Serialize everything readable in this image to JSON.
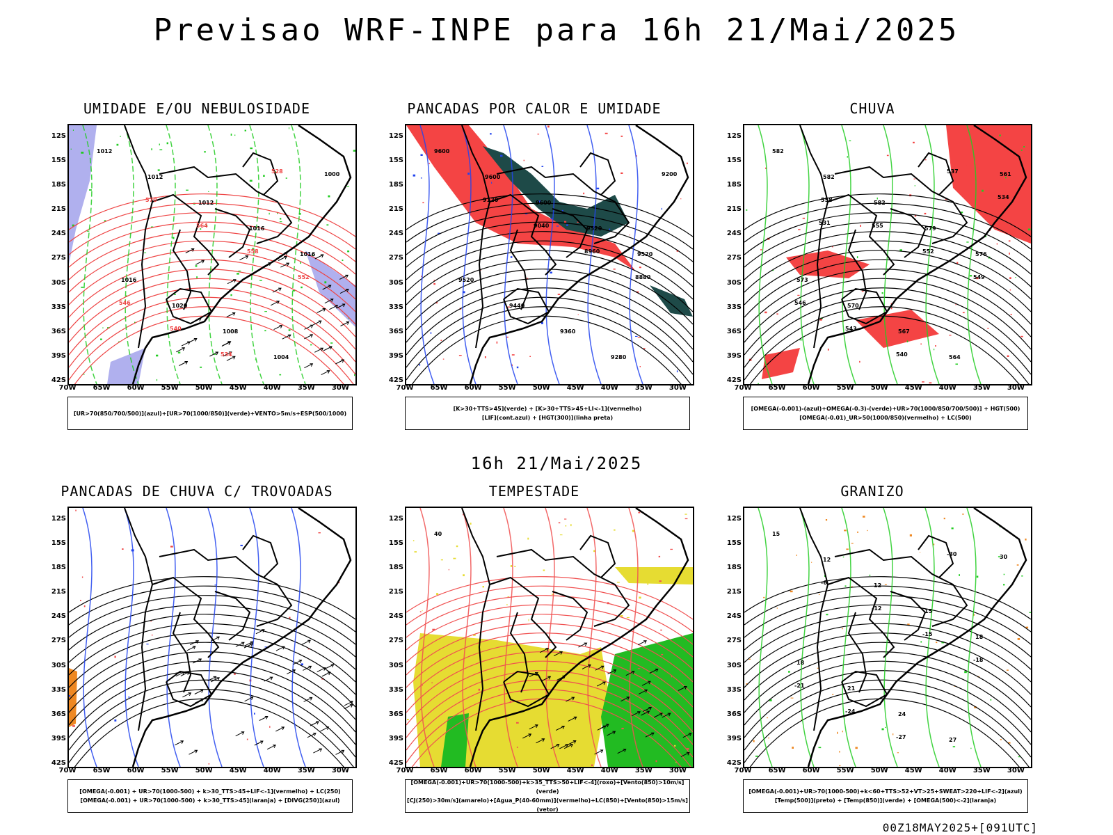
{
  "main_title": "Previsao WRF-INPE  para 16h 21/Mai/2025",
  "mid_title": "16h 21/Mai/2025",
  "footer": "00Z18MAY2025+[091UTC]",
  "lat_ticks": [
    "12S",
    "15S",
    "18S",
    "21S",
    "24S",
    "27S",
    "30S",
    "33S",
    "36S",
    "39S",
    "42S"
  ],
  "lon_ticks": [
    "70W",
    "65W",
    "60W",
    "55W",
    "50W",
    "45W",
    "40W",
    "35W",
    "30W"
  ],
  "panels": [
    {
      "id": "umidade",
      "title": "UMIDADE E/OU NEBULOSIDADE",
      "legend": [
        "[UR>70(850/700/500)](azul)+[UR>70(1000/850)](verde)+VENTO>5m/s+ESP(500/1000)"
      ],
      "labels": [
        "1012",
        "1012",
        "1012",
        "1016",
        "1016",
        "1016",
        "1020",
        "1008",
        "1004",
        "1000",
        "570",
        "564",
        "558",
        "552",
        "546",
        "540",
        "534",
        "528"
      ],
      "colors": {
        "fill_a": "#b0b0ee",
        "fill_b": "#ffffff",
        "lines_a": "#22cc22",
        "lines_b": "#ee4444"
      }
    },
    {
      "id": "pancadas-calor",
      "title": "PANCADAS POR CALOR E UMIDADE",
      "legend": [
        "[K>30+TTS>45](verde) + [K>30+TTS>45+LI<-1](vermelho)",
        "[LIF](cont.azul) + [HGT(300)](linha preta)"
      ],
      "labels": [
        "9600",
        "9600",
        "9600",
        "9520",
        "9520",
        "9520",
        "9440",
        "9360",
        "9280",
        "9200",
        "9120",
        "9040",
        "8960",
        "8880"
      ],
      "colors": {
        "fill_a": "#f44444",
        "fill_b": "#1e4a48",
        "lines_a": "#2244ee",
        "lines_b": "#000000"
      }
    },
    {
      "id": "chuva",
      "title": "CHUVA",
      "legend": [
        "[OMEGA(-0.001)-(azul)+OMEGA(-0.3)-(verde)+UR>70(1000/850/700/500)] + HGT(500)",
        "[OMEGA(-0.01)_UR>50(1000/850)(vermelho) + LC(500)"
      ],
      "labels": [
        "582",
        "582",
        "582",
        "579",
        "576",
        "573",
        "570",
        "567",
        "564",
        "561",
        "558",
        "555",
        "552",
        "549",
        "546",
        "543",
        "540",
        "537",
        "534",
        "531"
      ],
      "colors": {
        "fill_a": "#f44444",
        "fill_b": "#2244ee",
        "lines_a": "#22cc22",
        "lines_b": "#000000"
      }
    },
    {
      "id": "pancadas-trovoadas",
      "title": "PANCADAS DE CHUVA C/ TROVOADAS",
      "legend": [
        "[OMEGA(-0.001) + UR>70(1000-500) + k>30_TTS>45+LIF<-1](vermelho) + LC(250)",
        "[OMEGA(-0.001) + UR>70(1000-500) + k>30_TTS>45](laranja) + [DIVG(250)](azul)"
      ],
      "labels": [],
      "colors": {
        "fill_a": "#ee4444",
        "fill_b": "#ee8822",
        "lines_a": "#2244ee",
        "lines_b": "#000000"
      }
    },
    {
      "id": "tempestade",
      "title": "TEMPESTADE",
      "legend": [
        "[OMEGA(-0.001)+UR>70(1000-500)+k>35_TTS>50+LIF<-4](roxo)+[Vento(850)>10m/s](verde)",
        "[CJ(250)>30m/s](amarelo)+[Agua_P(40-60mm)](vermelho)+LC(850)+[Vento(850)>15m/s](vetor)"
      ],
      "labels": [
        "40"
      ],
      "colors": {
        "fill_a": "#e6dc32",
        "fill_b": "#22bb22",
        "lines_a": "#f05050",
        "lines_b": "#000000"
      }
    },
    {
      "id": "granizo",
      "title": "GRANIZO",
      "legend": [
        "[OMEGA(-0.001)+UR>70(1000-500)+k<60+TTS>52+VT>25+SWEAT>220+LIF<-2](azul)",
        "[Temp(500)](preto) + [Temp(850)](verde) + [OMEGA(500)<-2](laranja)"
      ],
      "labels": [
        "15",
        "12",
        "12",
        "15",
        "18",
        "18",
        "21",
        "24",
        "27",
        "30",
        "-6",
        "-12",
        "-15",
        "-18",
        "-21",
        "-24",
        "-27",
        "-30"
      ],
      "colors": {
        "fill_a": "#ee8822",
        "fill_b": "#ffffff",
        "lines_a": "#22cc22",
        "lines_b": "#000000"
      }
    }
  ]
}
